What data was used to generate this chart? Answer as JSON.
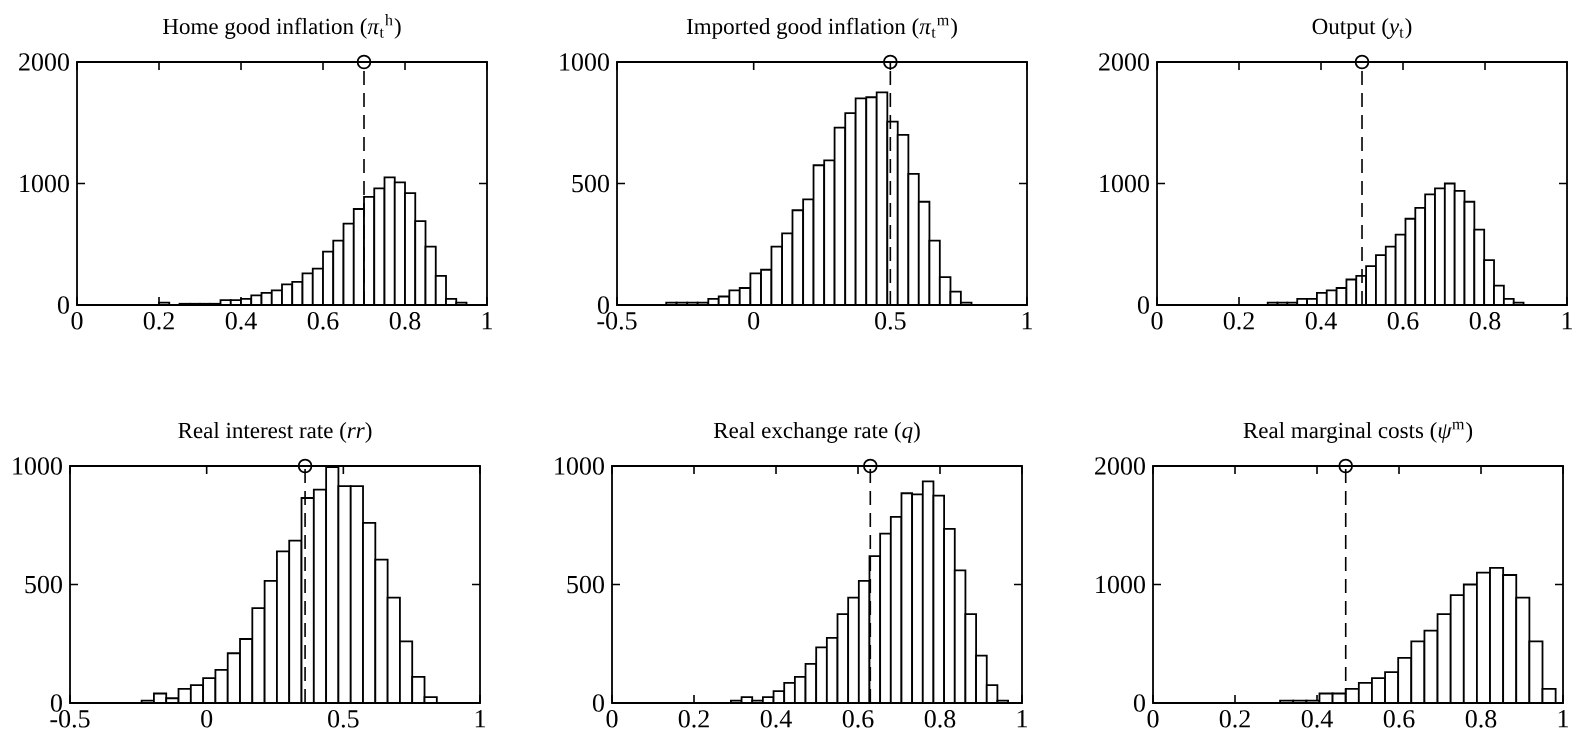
{
  "chart_data": [
    {
      "type": "histogram",
      "title": "Home good inflation (*π*$_{t}$$^{h}$)",
      "color": "#ffffff",
      "bins": [
        0.2,
        0.225,
        0.25,
        0.275,
        0.3,
        0.325,
        0.35,
        0.375,
        0.4,
        0.425,
        0.45,
        0.475,
        0.5,
        0.525,
        0.55,
        0.575,
        0.6,
        0.625,
        0.65,
        0.675,
        0.7,
        0.725,
        0.75,
        0.775,
        0.8,
        0.825,
        0.85,
        0.875,
        0.9,
        0.925,
        0.95
      ],
      "values": [
        20,
        0,
        10,
        10,
        10,
        10,
        40,
        40,
        50,
        80,
        100,
        120,
        170,
        190,
        260,
        300,
        440,
        530,
        670,
        790,
        890,
        960,
        1050,
        1010,
        920,
        690,
        480,
        240,
        50,
        20
      ],
      "series": [
        {
          "type": "scatter",
          "x": [
            0.7
          ],
          "values": [
            2000
          ],
          "marker": "circle",
          "color": "#000000"
        }
      ],
      "xlim": [
        0,
        1
      ],
      "ylim": [
        0,
        2000
      ],
      "xticks": [
        0,
        0.2,
        0.4,
        0.6,
        0.8,
        1
      ],
      "yticks": [
        0,
        1000,
        2000
      ],
      "ref_lines": [
        {
          "axis": "x",
          "value": 0.7,
          "line_style": "dashed"
        }
      ]
    },
    {
      "type": "histogram",
      "title": "Imported good inflation (*π*$_{t}$$^{m}$)",
      "color": "#ffffff",
      "bins": [
        -0.32,
        -0.282,
        -0.243,
        -0.205,
        -0.166,
        -0.128,
        -0.089,
        -0.051,
        -0.012,
        0.027,
        0.065,
        0.104,
        0.142,
        0.181,
        0.219,
        0.258,
        0.296,
        0.335,
        0.373,
        0.412,
        0.45,
        0.489,
        0.527,
        0.566,
        0.604,
        0.643,
        0.681,
        0.72,
        0.758,
        0.797
      ],
      "values": [
        10,
        10,
        10,
        10,
        25,
        35,
        60,
        70,
        130,
        145,
        240,
        295,
        390,
        435,
        575,
        595,
        730,
        790,
        850,
        855,
        875,
        755,
        700,
        540,
        425,
        265,
        115,
        55,
        10
      ],
      "series": [
        {
          "type": "scatter",
          "x": [
            0.5
          ],
          "values": [
            1000
          ],
          "marker": "circle",
          "color": "#000000"
        }
      ],
      "xlim": [
        -0.5,
        1
      ],
      "ylim": [
        0,
        1000
      ],
      "xticks": [
        -0.5,
        0,
        0.5,
        1
      ],
      "yticks": [
        0,
        500,
        1000
      ],
      "ref_lines": [
        {
          "axis": "x",
          "value": 0.5,
          "line_style": "dashed"
        }
      ]
    },
    {
      "type": "histogram",
      "title": "Output (*y*$_{t}$)",
      "color": "#ffffff",
      "bins": [
        0.27,
        0.294,
        0.318,
        0.342,
        0.366,
        0.39,
        0.414,
        0.438,
        0.462,
        0.486,
        0.51,
        0.534,
        0.558,
        0.582,
        0.606,
        0.63,
        0.654,
        0.678,
        0.702,
        0.726,
        0.75,
        0.774,
        0.798,
        0.822,
        0.846,
        0.87,
        0.894
      ],
      "values": [
        20,
        20,
        20,
        50,
        50,
        100,
        120,
        140,
        210,
        240,
        320,
        410,
        480,
        580,
        710,
        800,
        910,
        960,
        1000,
        940,
        850,
        620,
        370,
        160,
        50,
        20
      ],
      "series": [
        {
          "type": "scatter",
          "x": [
            0.5
          ],
          "values": [
            2000
          ],
          "marker": "circle",
          "color": "#000000"
        }
      ],
      "xlim": [
        0,
        1
      ],
      "ylim": [
        0,
        2000
      ],
      "xticks": [
        0,
        0.2,
        0.4,
        0.6,
        0.8,
        1
      ],
      "yticks": [
        0,
        1000,
        2000
      ],
      "ref_lines": [
        {
          "axis": "x",
          "value": 0.5,
          "line_style": "dashed"
        }
      ]
    },
    {
      "type": "histogram",
      "title": "Real interest rate (*rr*)",
      "color": "#ffffff",
      "bins": [
        -0.238,
        -0.193,
        -0.148,
        -0.103,
        -0.058,
        -0.013,
        0.032,
        0.077,
        0.122,
        0.167,
        0.212,
        0.257,
        0.302,
        0.347,
        0.392,
        0.437,
        0.482,
        0.527,
        0.572,
        0.617,
        0.662,
        0.707,
        0.752,
        0.797,
        0.842
      ],
      "values": [
        10,
        40,
        20,
        60,
        75,
        105,
        140,
        210,
        270,
        400,
        515,
        640,
        685,
        865,
        900,
        995,
        915,
        915,
        760,
        605,
        445,
        260,
        110,
        25
      ],
      "series": [
        {
          "type": "scatter",
          "x": [
            0.36
          ],
          "values": [
            1000
          ],
          "marker": "circle",
          "color": "#000000"
        }
      ],
      "xlim": [
        -0.5,
        1
      ],
      "ylim": [
        0,
        1000
      ],
      "xticks": [
        -0.5,
        0,
        0.5,
        1
      ],
      "yticks": [
        0,
        500,
        1000
      ],
      "ref_lines": [
        {
          "axis": "x",
          "value": 0.36,
          "line_style": "dashed"
        }
      ]
    },
    {
      "type": "histogram",
      "title": "Real exchange rate (*q*)",
      "color": "#ffffff",
      "bins": [
        0.29,
        0.316,
        0.342,
        0.368,
        0.394,
        0.42,
        0.446,
        0.472,
        0.498,
        0.524,
        0.55,
        0.576,
        0.602,
        0.628,
        0.654,
        0.68,
        0.706,
        0.732,
        0.758,
        0.784,
        0.81,
        0.836,
        0.862,
        0.888,
        0.914,
        0.94,
        0.966
      ],
      "values": [
        10,
        25,
        10,
        25,
        50,
        85,
        110,
        165,
        235,
        275,
        375,
        445,
        515,
        620,
        715,
        785,
        885,
        880,
        935,
        875,
        735,
        560,
        375,
        200,
        75,
        10
      ],
      "series": [
        {
          "type": "scatter",
          "x": [
            0.63
          ],
          "values": [
            1000
          ],
          "marker": "circle",
          "color": "#000000"
        }
      ],
      "xlim": [
        0,
        1
      ],
      "ylim": [
        0,
        1000
      ],
      "xticks": [
        0,
        0.2,
        0.4,
        0.6,
        0.8,
        1
      ],
      "yticks": [
        0,
        500,
        1000
      ],
      "ref_lines": [
        {
          "axis": "x",
          "value": 0.63,
          "line_style": "dashed"
        }
      ]
    },
    {
      "type": "histogram",
      "title": "Real marginal costs (*ψ*$^{m}$)",
      "color": "#ffffff",
      "bins": [
        0.31,
        0.342,
        0.374,
        0.406,
        0.438,
        0.47,
        0.502,
        0.534,
        0.566,
        0.598,
        0.63,
        0.662,
        0.694,
        0.726,
        0.758,
        0.79,
        0.822,
        0.854,
        0.886,
        0.918,
        0.95,
        0.982
      ],
      "values": [
        20,
        20,
        20,
        80,
        80,
        120,
        170,
        210,
        260,
        380,
        520,
        610,
        750,
        910,
        1000,
        1100,
        1140,
        1080,
        890,
        520,
        120
      ],
      "series": [
        {
          "type": "scatter",
          "x": [
            0.47
          ],
          "values": [
            2000
          ],
          "marker": "circle",
          "color": "#000000"
        }
      ],
      "xlim": [
        0,
        1
      ],
      "ylim": [
        0,
        2000
      ],
      "xticks": [
        0,
        0.2,
        0.4,
        0.6,
        0.8,
        1
      ],
      "yticks": [
        0,
        1000,
        2000
      ],
      "ref_lines": [
        {
          "axis": "x",
          "value": 0.47,
          "line_style": "dashed"
        }
      ]
    }
  ]
}
